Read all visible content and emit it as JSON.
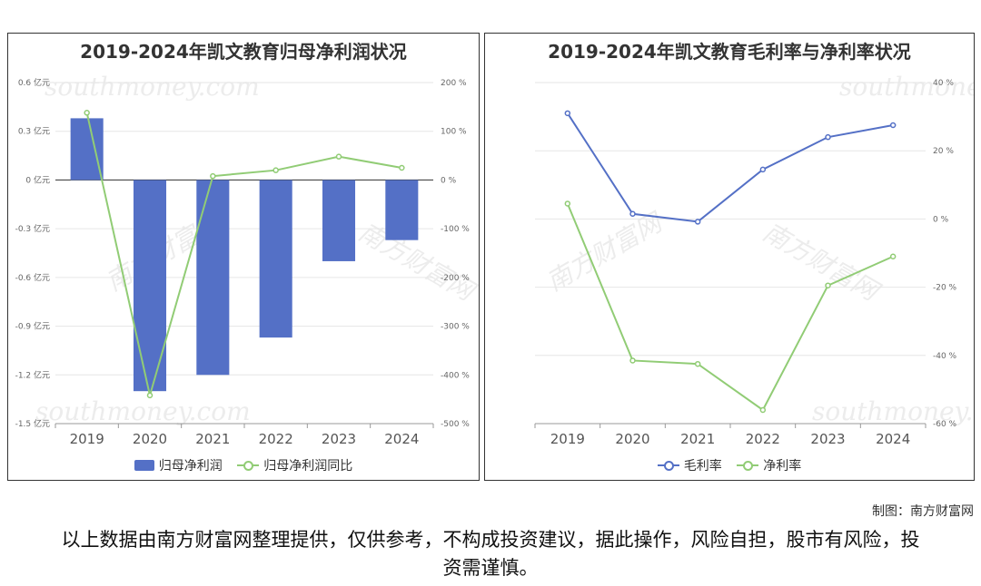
{
  "colors": {
    "bar": "#5470c6",
    "green": "#91cc75",
    "blue": "#5470c6",
    "axis": "#666666",
    "grid": "#e6e6e6"
  },
  "left_panel": {
    "title": "2019-2024年凯文教育归母净利润状况",
    "legend": {
      "bar": "归母净利润",
      "line": "归母净利润同比"
    }
  },
  "right_panel": {
    "title": "2019-2024年凯文教育毛利率与净利率状况",
    "legend": {
      "line1": "毛利率",
      "line2": "净利率"
    }
  },
  "watermark": {
    "cn": "南方财富网",
    "en": "southmoney.com"
  },
  "credit": "制图：南方财富网",
  "disclaimer": "以上数据由南方财富网整理提供，仅供参考，不构成投资建议，据此操作，风险自担，股市有风险，投资需谨慎。",
  "chart_data": [
    {
      "type": "bar",
      "title": "2019-2024年凯文教育归母净利润状况",
      "categories": [
        "2019",
        "2020",
        "2021",
        "2022",
        "2023",
        "2024"
      ],
      "series": [
        {
          "name": "归母净利润",
          "type": "bar",
          "axis": "left",
          "values": [
            0.38,
            -1.3,
            -1.2,
            -0.97,
            -0.5,
            -0.37
          ]
        },
        {
          "name": "归母净利润同比",
          "type": "line",
          "axis": "right",
          "values": [
            138,
            -442,
            8,
            20,
            48,
            25
          ]
        }
      ],
      "y_left": {
        "min": -1.5,
        "max": 0.6,
        "ticks": [
          "0.6 亿元",
          "0.3 亿元",
          "0 亿元",
          "-0.3 亿元",
          "-0.6 亿元",
          "-0.9 亿元",
          "-1.2 亿元",
          "-1.5 亿元"
        ]
      },
      "y_right": {
        "min": -500,
        "max": 200,
        "ticks": [
          "200 %",
          "100 %",
          "0 %",
          "-100 %",
          "-200 %",
          "-300 %",
          "-400 %",
          "-500 %"
        ]
      },
      "grid": true,
      "legend": "bottom"
    },
    {
      "type": "line",
      "title": "2019-2024年凯文教育毛利率与净利率状况",
      "categories": [
        "2019",
        "2020",
        "2021",
        "2022",
        "2023",
        "2024"
      ],
      "series": [
        {
          "name": "毛利率",
          "values": [
            31,
            1.5,
            -0.8,
            14.5,
            24,
            27.5
          ]
        },
        {
          "name": "净利率",
          "values": [
            4.5,
            -41.5,
            -42.5,
            -56,
            -19.5,
            -11
          ]
        }
      ],
      "y_right": {
        "min": -60,
        "max": 40,
        "ticks": [
          "40 %",
          "20 %",
          "0 %",
          "-20 %",
          "-40 %",
          "-60 %"
        ]
      },
      "grid": true,
      "legend": "bottom"
    }
  ]
}
